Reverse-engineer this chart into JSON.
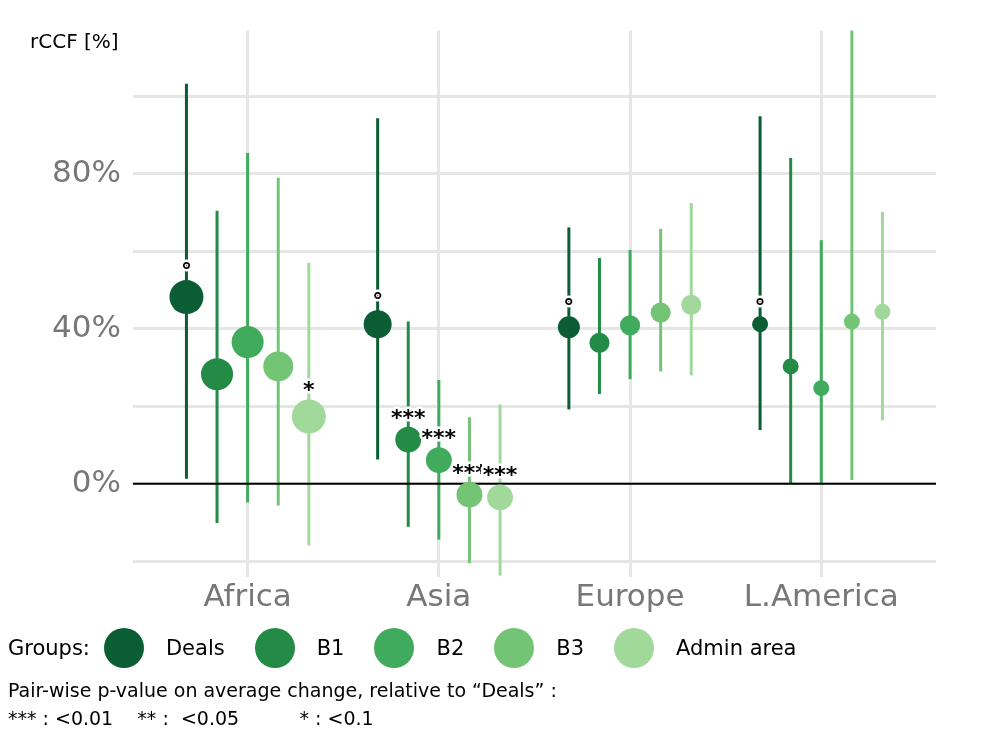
{
  "chart_data": {
    "type": "bubble",
    "ylabel": "rCCF [%]",
    "legend_title": "Groups:",
    "categories": [
      "Africa",
      "Asia",
      "Europe",
      "L.America"
    ],
    "ylim": [
      -24,
      117
    ],
    "yticks": [
      {
        "value": -20,
        "label": null
      },
      {
        "value": 0,
        "label": "0%"
      },
      {
        "value": 20,
        "label": null
      },
      {
        "value": 40,
        "label": "40%"
      },
      {
        "value": 60,
        "label": null
      },
      {
        "value": 80,
        "label": "80%"
      },
      {
        "value": 100,
        "label": null
      }
    ],
    "grid": true,
    "legend": "bottom",
    "series": [
      {
        "name": "Deals",
        "color": "#0b5e34",
        "values": [
          48.2,
          41.2,
          40.4,
          41.2
        ],
        "errors": [
          [
            1.3,
            103.3
          ],
          [
            6.3,
            94.4
          ],
          [
            19.2,
            66.2
          ],
          [
            13.9,
            94.9
          ]
        ],
        "sizes": [
          1,
          0.68,
          0.42,
          0.22
        ],
        "value_labels": [
          "°",
          "°",
          "°",
          "°"
        ]
      },
      {
        "name": "B1",
        "color": "#238b45",
        "values": [
          28.3,
          11.4,
          36.4,
          30.3
        ],
        "errors": [
          [
            -10.1,
            70.5
          ],
          [
            -11.1,
            41.9
          ],
          [
            23.2,
            58.3
          ],
          [
            0,
            84.1
          ]
        ],
        "sizes": [
          0.89,
          0.58,
          0.35,
          0.22
        ],
        "value_labels": [
          null,
          "***",
          null,
          null
        ]
      },
      {
        "name": "B2",
        "color": "#41ab5d",
        "values": [
          36.6,
          6.1,
          40.9,
          24.7
        ],
        "errors": [
          [
            -4.8,
            85.4
          ],
          [
            -14.4,
            26.8
          ],
          [
            27,
            60.4
          ],
          [
            0,
            62.9
          ]
        ],
        "sizes": [
          0.89,
          0.58,
          0.35,
          0.22
        ],
        "value_labels": [
          null,
          "***",
          null,
          null
        ]
      },
      {
        "name": "B3",
        "color": "#74c476",
        "values": [
          30.3,
          -2.8,
          44.2,
          41.9
        ],
        "errors": [
          [
            -5.6,
            79
          ],
          [
            -20.5,
            17.2
          ],
          [
            29,
            65.8
          ],
          [
            1,
            117
          ]
        ],
        "sizes": [
          0.78,
          0.58,
          0.35,
          0.22
        ],
        "value_labels": [
          null,
          "***",
          null,
          null
        ]
      },
      {
        "name": "Admin area",
        "color": "#a1d99b",
        "values": [
          17.4,
          -3.5,
          46.2,
          44.4
        ],
        "errors": [
          [
            -15.9,
            57.1
          ],
          [
            -23.7,
            20.5
          ],
          [
            28,
            72.5
          ],
          [
            16.4,
            70.2
          ]
        ],
        "sizes": [
          1,
          0.58,
          0.35,
          0.22
        ],
        "value_labels": [
          "*",
          "***",
          null,
          null
        ]
      }
    ],
    "ref_lines": [
      {
        "axis": "y",
        "value": 0,
        "color": "#000000"
      }
    ],
    "annotations": [
      "Pair-wise p-value on average change, relative to “Deals” :",
      "*** : <0.01    ** :  <0.05          * : <0.1"
    ]
  }
}
